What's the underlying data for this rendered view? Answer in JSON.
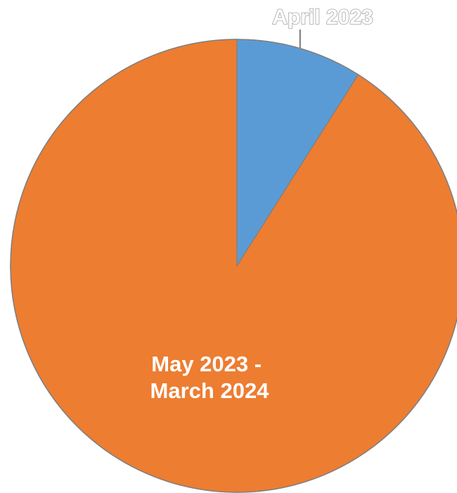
{
  "chart_data": {
    "type": "pie",
    "start_angle_deg": 0,
    "direction": "clockwise",
    "slices": [
      {
        "label": "April 2023",
        "value": 9,
        "color": "#5B9BD5"
      },
      {
        "label_lines": [
          "May 2023 -",
          "March 2024"
        ],
        "value": 91,
        "color": "#ED7D31"
      }
    ],
    "legend": "none",
    "title": ""
  }
}
